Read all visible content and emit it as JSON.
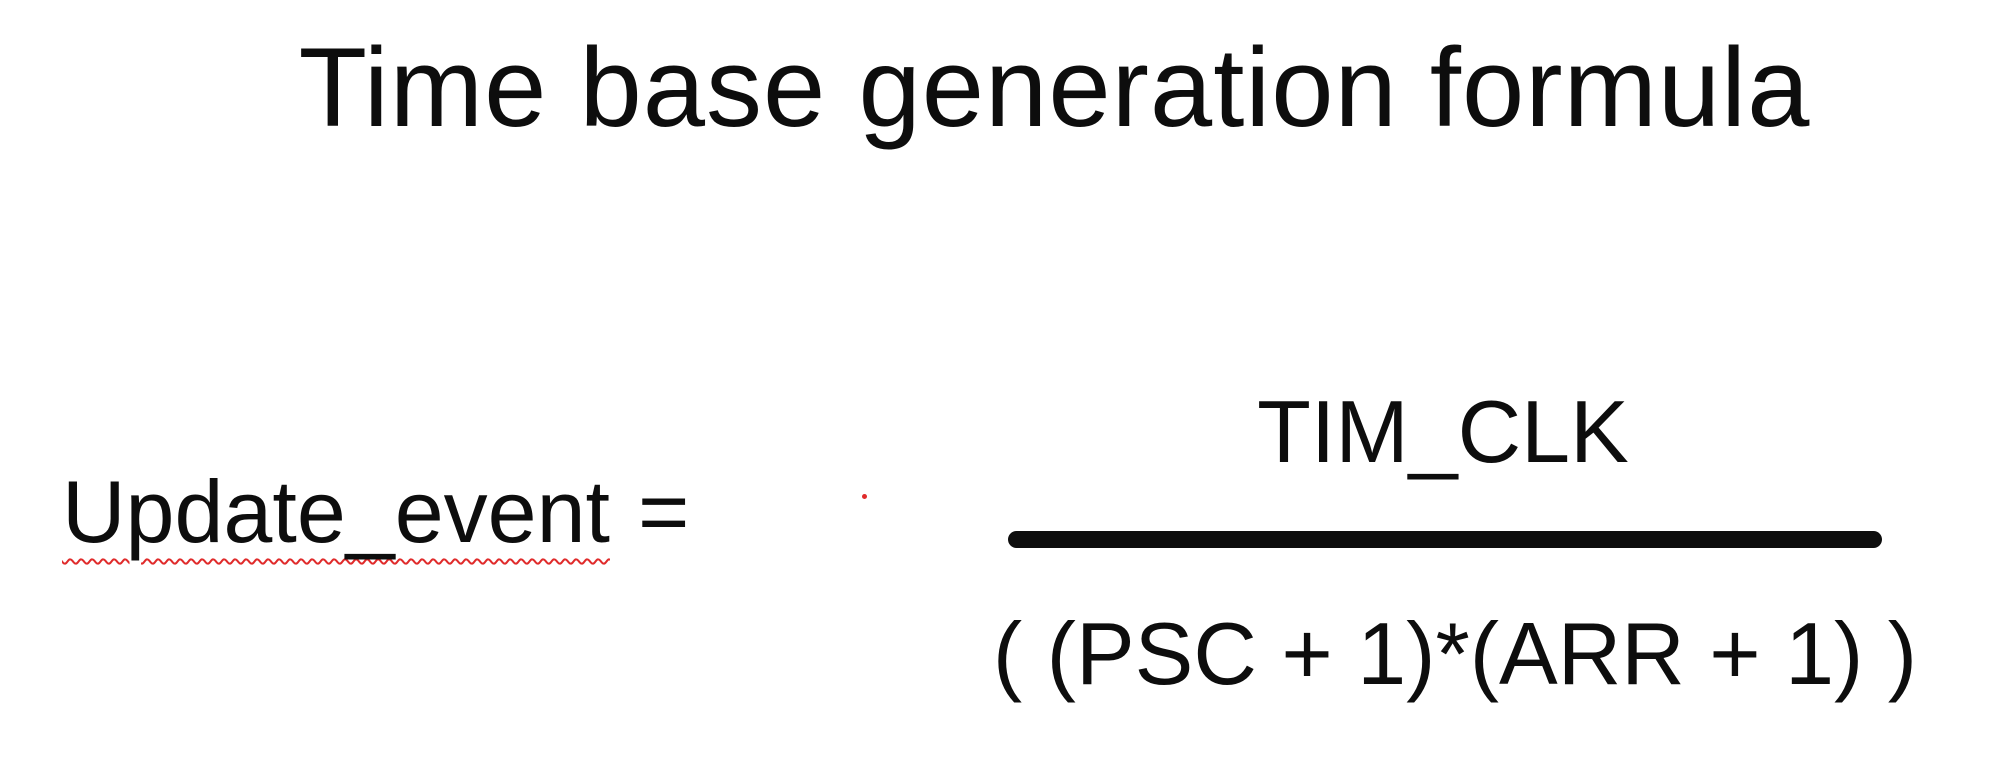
{
  "title": "Time base generation formula",
  "formula": {
    "lhs": "Update_event",
    "equals": "=",
    "numerator": "TIM_CLK",
    "denominator": "( (PSC + 1)*(ARR + 1) )"
  },
  "colors": {
    "text": "#0d0d0d",
    "spellcheck_underline": "#e02b2b",
    "background": "#ffffff"
  }
}
